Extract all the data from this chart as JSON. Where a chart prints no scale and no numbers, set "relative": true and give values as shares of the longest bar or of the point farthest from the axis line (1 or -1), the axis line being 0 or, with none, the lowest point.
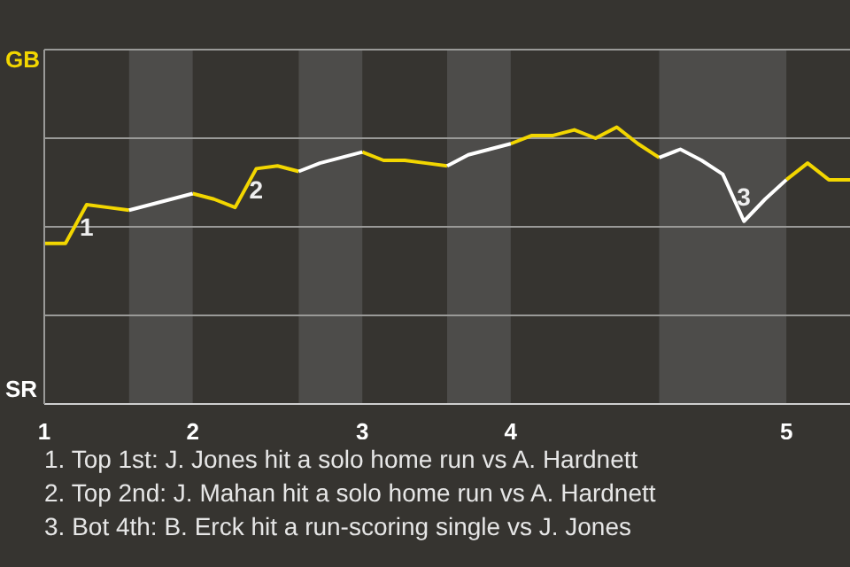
{
  "chart_data": {
    "type": "line",
    "categories": [
      "1",
      null,
      null,
      null,
      null,
      null,
      null,
      "2",
      null,
      null,
      null,
      null,
      null,
      null,
      null,
      "3",
      null,
      null,
      null,
      null,
      null,
      null,
      "4",
      null,
      null,
      null,
      null,
      null,
      null,
      null,
      null,
      null,
      null,
      null,
      null,
      "5",
      null,
      null,
      null
    ],
    "relative": true,
    "grid": "y",
    "line_style": "solid",
    "marker": "none",
    "series": [
      {
        "color": "#f2d600",
        "values": [
          0.58,
          0.58,
          0.72,
          0.71,
          0.7,
          null,
          null,
          0.76,
          0.74,
          0.71,
          0.85,
          0.86,
          0.84,
          null,
          null,
          0.91,
          0.88,
          0.88,
          0.87,
          0.86,
          null,
          null,
          0.94,
          0.97,
          0.97,
          0.99,
          0.96,
          1,
          0.94,
          0.89,
          null,
          null,
          null,
          null,
          null,
          0.81,
          0.87,
          0.81,
          0.81
        ]
      },
      {
        "color": "#ffffff",
        "values": [
          null,
          null,
          null,
          null,
          0.7,
          0.72,
          0.74,
          0.76,
          null,
          null,
          null,
          null,
          0.84,
          0.87,
          0.89,
          0.91,
          null,
          null,
          null,
          0.86,
          0.9,
          0.92,
          0.94,
          null,
          null,
          null,
          null,
          null,
          null,
          0.89,
          0.92,
          0.88,
          0.83,
          0.66,
          0.74,
          0.81,
          null,
          null,
          null
        ]
      }
    ],
    "annotations": [
      "GB",
      "SR",
      {
        "text": "1",
        "y": 0.72
      },
      {
        "text": "2",
        "y": 0.85
      },
      {
        "text": "3",
        "y": 0.66
      },
      "1. Top 1st: J. Jones hit a solo home run vs A. Hardnett",
      "2. Top 2nd: J. Mahan hit a solo home run vs A. Hardnett",
      "3. Bot 4th: B. Erck hit a run-scoring single vs J. Jones"
    ]
  }
}
